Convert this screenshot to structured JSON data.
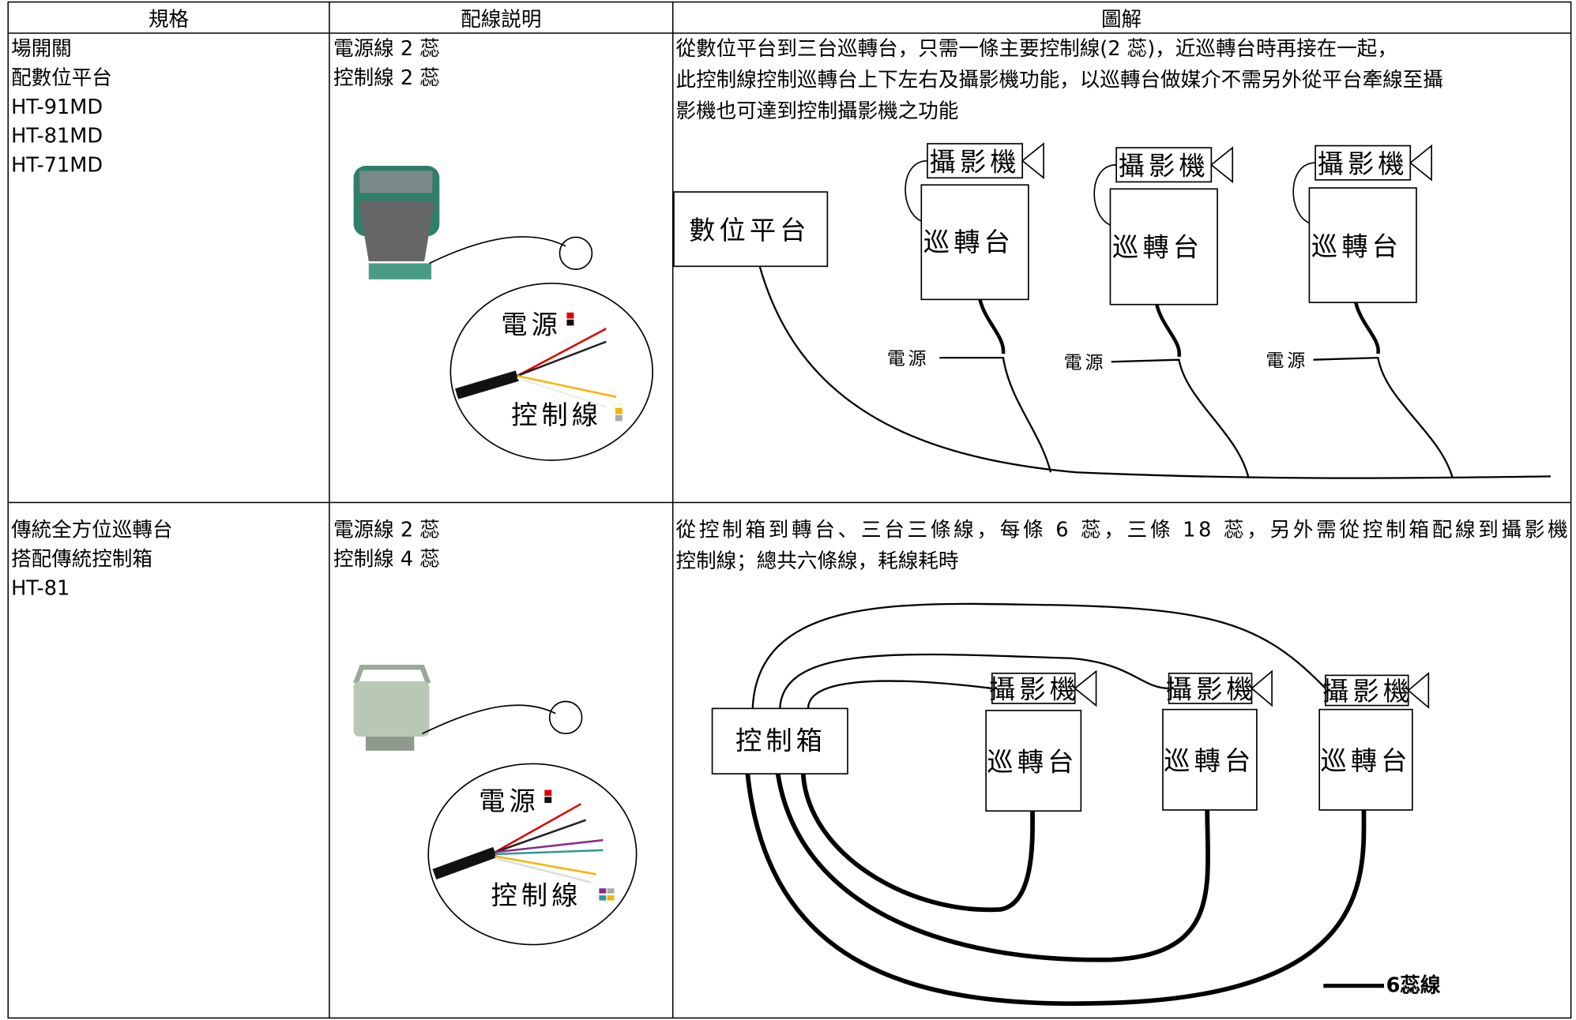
{
  "table": {
    "headers": [
      "規格",
      "配線説明",
      "圖解"
    ],
    "rows": [
      {
        "spec": [
          "場開關",
          "配數位平台",
          "HT-91MD",
          "HT-81MD",
          "HT-71MD"
        ],
        "wiring": [
          "電源線 2 蕊",
          "控制線 2 蕊"
        ],
        "wire_labels": [
          "電源",
          "控制線"
        ],
        "description": [
          "從數位平台到三台巡轉台，只需一條主要控制線(2 蕊)，近巡轉台時再接在一起，",
          "此控制線控制巡轉台上下左右及攝影機功能，以巡轉台做媒介不需另外從平台牽線至攝",
          "影機也可達到控制攝影機之功能"
        ],
        "diagram": {
          "controller": "數位平台",
          "camera": "攝影機",
          "pan_tilt": "巡轉台",
          "power": "電源"
        }
      },
      {
        "spec": [
          "傳統全方位巡轉台",
          "搭配傳統控制箱",
          "HT-81"
        ],
        "wiring": [
          "電源線 2 蕊",
          "控制線 4 蕊"
        ],
        "wire_labels": [
          "電源",
          "控制線"
        ],
        "description": [
          "從控制箱到轉台、三台三條線，每條 6 蕊，三條 18 蕊，另外需從控制箱配線到攝影機",
          "控制線；總共六條線，耗線耗時"
        ],
        "diagram": {
          "controller": "控制箱",
          "camera": "攝影機",
          "pan_tilt": "巡轉台",
          "legend": "6蕊線"
        }
      }
    ]
  }
}
